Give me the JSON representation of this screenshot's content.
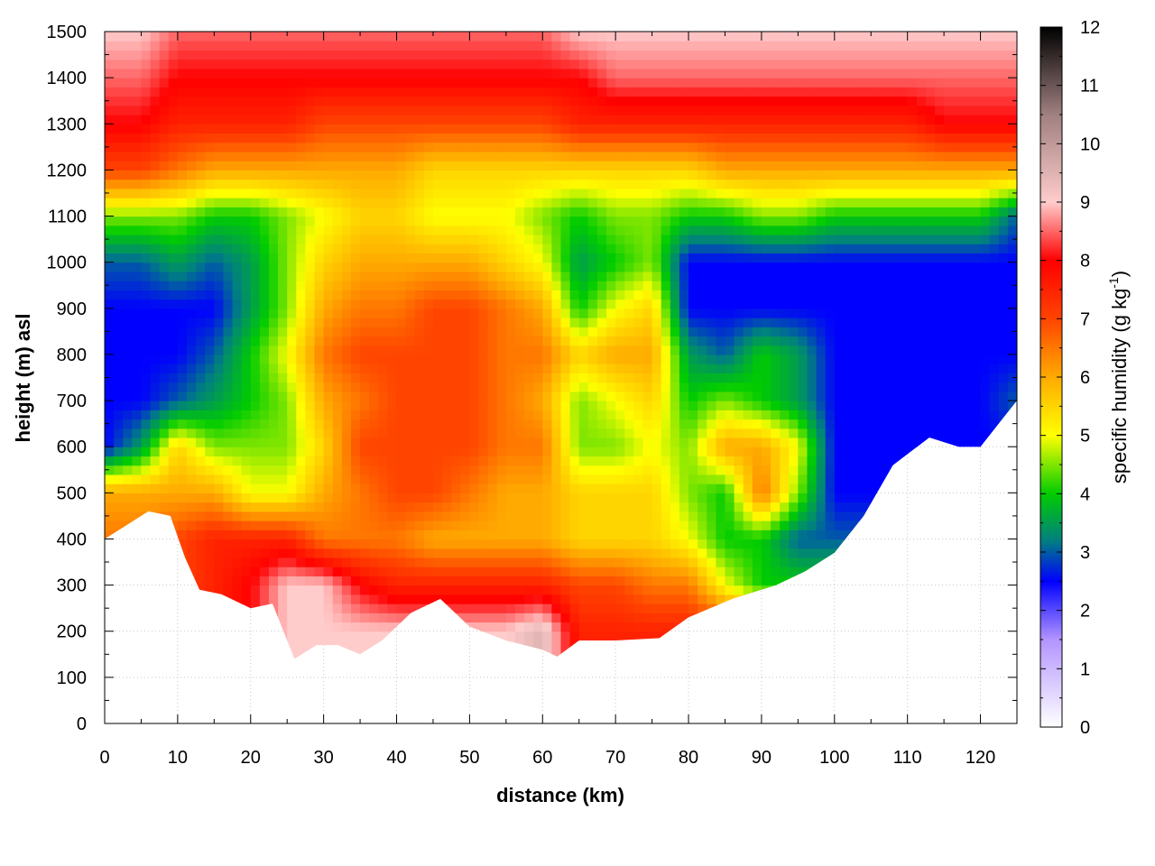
{
  "chart_data": {
    "type": "heatmap",
    "title": "",
    "xlabel": "distance (km)",
    "ylabel": "height (m) asl",
    "xlim": [
      0,
      125
    ],
    "ylim": [
      0,
      1500
    ],
    "x_ticks": [
      0,
      10,
      20,
      30,
      40,
      50,
      60,
      70,
      80,
      90,
      100,
      110,
      120
    ],
    "y_ticks": [
      0,
      100,
      200,
      300,
      400,
      500,
      600,
      700,
      800,
      900,
      1000,
      1100,
      1200,
      1300,
      1400,
      1500
    ],
    "grid": true,
    "colorbar": {
      "label_main": "specific humidity (g kg",
      "label_sup": "-1",
      "label_close": ")",
      "range": [
        0,
        12
      ],
      "ticks": [
        0,
        1,
        2,
        3,
        4,
        5,
        6,
        7,
        8,
        9,
        10,
        11,
        12
      ],
      "stops": [
        {
          "value": 0,
          "color": "#ffffff"
        },
        {
          "value": 1.5,
          "color": "#b394ff"
        },
        {
          "value": 2.5,
          "color": "#0000ff"
        },
        {
          "value": 3.2,
          "color": "#008080"
        },
        {
          "value": 4,
          "color": "#00cc00"
        },
        {
          "value": 5,
          "color": "#ffff00"
        },
        {
          "value": 6,
          "color": "#ffaa00"
        },
        {
          "value": 7,
          "color": "#ff4400"
        },
        {
          "value": 8,
          "color": "#ff0000"
        },
        {
          "value": 9,
          "color": "#ffcccc"
        },
        {
          "value": 10.5,
          "color": "#a08080"
        },
        {
          "value": 12,
          "color": "#000000"
        }
      ]
    },
    "terrain_top_m": [
      [
        0,
        400
      ],
      [
        3,
        430
      ],
      [
        6,
        460
      ],
      [
        9,
        450
      ],
      [
        11,
        360
      ],
      [
        13,
        290
      ],
      [
        16,
        280
      ],
      [
        20,
        250
      ],
      [
        23,
        260
      ],
      [
        26,
        140
      ],
      [
        29,
        170
      ],
      [
        32,
        170
      ],
      [
        35,
        150
      ],
      [
        38,
        180
      ],
      [
        42,
        240
      ],
      [
        46,
        270
      ],
      [
        50,
        210
      ],
      [
        55,
        180
      ],
      [
        60,
        160
      ],
      [
        62,
        145
      ],
      [
        65,
        180
      ],
      [
        70,
        180
      ],
      [
        76,
        185
      ],
      [
        80,
        230
      ],
      [
        86,
        270
      ],
      [
        92,
        300
      ],
      [
        96,
        330
      ],
      [
        100,
        370
      ],
      [
        104,
        450
      ],
      [
        108,
        560
      ],
      [
        113,
        620
      ],
      [
        117,
        600
      ],
      [
        120,
        600
      ],
      [
        123,
        660
      ],
      [
        125,
        700
      ]
    ],
    "humidity_grid": {
      "x": [
        0,
        5,
        10,
        15,
        20,
        25,
        30,
        35,
        40,
        45,
        50,
        55,
        60,
        65,
        70,
        75,
        80,
        85,
        90,
        95,
        100,
        105,
        110,
        115,
        120,
        125
      ],
      "y": [
        200,
        300,
        400,
        500,
        600,
        700,
        800,
        900,
        1000,
        1100,
        1200,
        1300,
        1400,
        1500
      ],
      "values": [
        [
          7.5,
          7.5,
          7.5,
          7.5,
          8.0,
          9.0,
          9.0,
          9.0,
          9.0,
          9.0,
          9.0,
          9.0,
          9.5,
          7.5,
          7.5,
          7.5,
          7.5,
          7.5,
          7.5,
          7.5,
          7.5,
          7.5,
          7.5,
          7.5,
          7.5,
          7.5
        ],
        [
          7.0,
          7.0,
          7.0,
          7.5,
          8.0,
          9.0,
          9.0,
          8.0,
          7.5,
          7.5,
          7.5,
          7.5,
          7.5,
          7.0,
          7.0,
          6.5,
          6.5,
          5.0,
          4.0,
          4.0,
          4.0,
          4.0,
          4.0,
          4.0,
          4.0,
          4.0
        ],
        [
          6.5,
          6.5,
          7.0,
          7.5,
          7.5,
          7.5,
          6.5,
          6.5,
          6.5,
          6.0,
          6.0,
          6.0,
          6.0,
          5.5,
          5.5,
          5.5,
          5.0,
          4.0,
          4.0,
          3.0,
          3.0,
          3.0,
          3.0,
          3.0,
          3.0,
          3.0
        ],
        [
          6.0,
          6.0,
          6.0,
          6.0,
          5.0,
          5.0,
          6.0,
          6.5,
          7.0,
          7.0,
          6.5,
          6.0,
          6.0,
          5.5,
          5.5,
          5.5,
          4.5,
          4.0,
          6.5,
          4.5,
          2.5,
          2.5,
          2.5,
          2.5,
          2.5,
          2.5
        ],
        [
          2.5,
          3.5,
          5.5,
          4.5,
          4.5,
          4.5,
          5.5,
          7.0,
          7.0,
          7.0,
          7.0,
          6.5,
          6.5,
          4.5,
          4.5,
          5.0,
          4.5,
          6.0,
          6.0,
          5.0,
          2.5,
          2.5,
          2.5,
          2.5,
          2.5,
          2.5
        ],
        [
          2.5,
          2.5,
          3.0,
          3.5,
          4.0,
          4.5,
          6.0,
          6.5,
          7.0,
          7.0,
          7.0,
          6.5,
          6.0,
          4.5,
          5.0,
          5.5,
          4.0,
          4.5,
          4.0,
          3.5,
          2.5,
          2.5,
          2.5,
          2.5,
          2.5,
          3.0
        ],
        [
          2.5,
          2.5,
          2.5,
          3.0,
          4.0,
          5.0,
          6.5,
          7.0,
          7.0,
          7.0,
          7.0,
          6.5,
          6.5,
          5.5,
          6.0,
          6.0,
          3.5,
          3.0,
          4.0,
          3.5,
          2.5,
          2.5,
          2.5,
          2.5,
          2.5,
          2.5
        ],
        [
          2.5,
          2.5,
          2.5,
          2.5,
          3.5,
          4.5,
          6.0,
          6.5,
          6.5,
          7.0,
          7.0,
          6.5,
          6.0,
          4.0,
          5.0,
          5.5,
          2.5,
          2.5,
          2.5,
          2.5,
          2.5,
          2.5,
          2.5,
          2.5,
          2.5,
          2.5
        ],
        [
          3.0,
          3.0,
          3.5,
          3.0,
          3.5,
          4.5,
          5.5,
          6.0,
          6.0,
          6.0,
          6.0,
          5.5,
          5.0,
          3.5,
          4.0,
          4.5,
          2.5,
          2.5,
          2.5,
          2.5,
          2.5,
          2.5,
          2.5,
          2.5,
          2.5,
          2.5
        ],
        [
          4.5,
          4.5,
          4.5,
          4.0,
          4.0,
          4.5,
          5.0,
          5.5,
          5.5,
          5.0,
          5.0,
          5.0,
          4.5,
          4.0,
          4.5,
          4.5,
          4.0,
          4.0,
          4.5,
          4.5,
          4.0,
          4.0,
          4.0,
          4.0,
          4.0,
          3.0
        ],
        [
          7.0,
          7.0,
          6.5,
          6.0,
          6.0,
          6.0,
          6.0,
          6.0,
          6.0,
          5.5,
          5.5,
          5.5,
          5.5,
          5.5,
          5.5,
          5.5,
          5.5,
          6.0,
          6.0,
          6.0,
          6.0,
          6.0,
          6.0,
          6.0,
          6.0,
          6.0
        ],
        [
          8.0,
          8.0,
          7.5,
          7.5,
          7.5,
          7.5,
          7.0,
          7.0,
          7.0,
          7.0,
          7.0,
          7.0,
          7.0,
          7.5,
          7.5,
          7.5,
          7.5,
          7.5,
          7.5,
          7.5,
          7.5,
          7.5,
          7.5,
          8.0,
          8.0,
          8.0
        ],
        [
          8.5,
          8.5,
          8.0,
          8.0,
          8.0,
          8.0,
          8.0,
          8.0,
          8.0,
          8.0,
          8.0,
          8.0,
          8.0,
          8.0,
          8.5,
          8.5,
          8.5,
          8.5,
          8.5,
          8.5,
          8.5,
          8.5,
          8.5,
          8.5,
          8.5,
          8.5
        ],
        [
          9.0,
          9.0,
          8.5,
          8.5,
          8.5,
          8.5,
          8.5,
          8.5,
          8.5,
          8.5,
          8.5,
          8.5,
          8.5,
          9.0,
          9.0,
          9.0,
          9.0,
          9.0,
          9.0,
          9.0,
          9.0,
          9.0,
          9.0,
          9.0,
          9.0,
          9.0
        ]
      ]
    }
  }
}
